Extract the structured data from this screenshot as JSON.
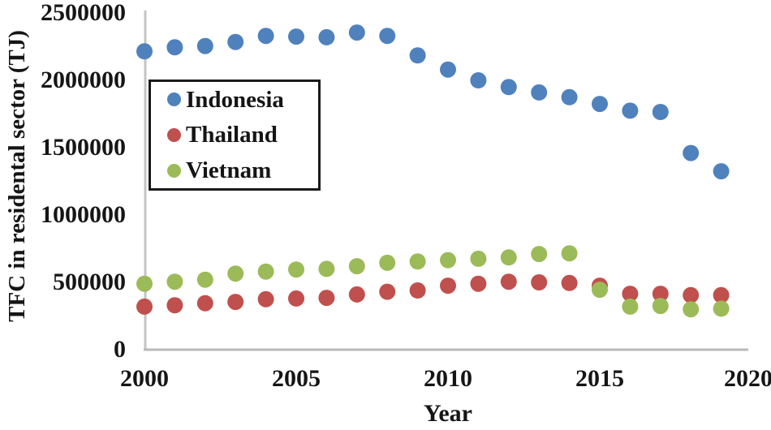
{
  "figure": {
    "ylabel": "TFC in residental sector (TJ)",
    "xlabel": "Year"
  },
  "axes": {
    "yticks": [
      "2500000",
      "2000000",
      "1500000",
      "1000000",
      "500000",
      "0"
    ],
    "xticks": [
      "2000",
      "2005",
      "2010",
      "2015",
      "2020"
    ]
  },
  "legend": {
    "items": [
      {
        "label": "Indonesia",
        "color": "#4F81BD"
      },
      {
        "label": "Thailand",
        "color": "#C0504D"
      },
      {
        "label": "Vietnam",
        "color": "#9BBB59"
      }
    ]
  },
  "chart_data": {
    "type": "scatter",
    "x": [
      2000,
      2001,
      2002,
      2003,
      2004,
      2005,
      2006,
      2007,
      2008,
      2009,
      2010,
      2011,
      2012,
      2013,
      2014,
      2015,
      2016,
      2017,
      2018,
      2019
    ],
    "series": [
      {
        "name": "Indonesia",
        "color": "#4F81BD",
        "values": [
          2215000,
          2245000,
          2255000,
          2285000,
          2330000,
          2325000,
          2320000,
          2355000,
          2330000,
          2185000,
          2080000,
          2000000,
          1950000,
          1910000,
          1875000,
          1825000,
          1775000,
          1765000,
          1460000,
          1325000
        ]
      },
      {
        "name": "Thailand",
        "color": "#C0504D",
        "values": [
          320000,
          330000,
          345000,
          355000,
          375000,
          380000,
          385000,
          410000,
          430000,
          440000,
          475000,
          490000,
          505000,
          500000,
          495000,
          475000,
          415000,
          415000,
          405000,
          405000
        ]
      },
      {
        "name": "Vietnam",
        "color": "#9BBB59",
        "values": [
          490000,
          505000,
          520000,
          565000,
          580000,
          595000,
          600000,
          620000,
          645000,
          655000,
          665000,
          675000,
          685000,
          710000,
          715000,
          445000,
          320000,
          325000,
          300000,
          305000
        ]
      }
    ],
    "title": "",
    "xlabel": "Year",
    "ylabel": "TFC in residental sector (TJ)",
    "xlim": [
      2000,
      2020
    ],
    "ylim": [
      0,
      2500000
    ],
    "grid": false,
    "legend_position": "upper-left-inside",
    "marker": "circle",
    "axis_color": "#c4c4c4"
  }
}
